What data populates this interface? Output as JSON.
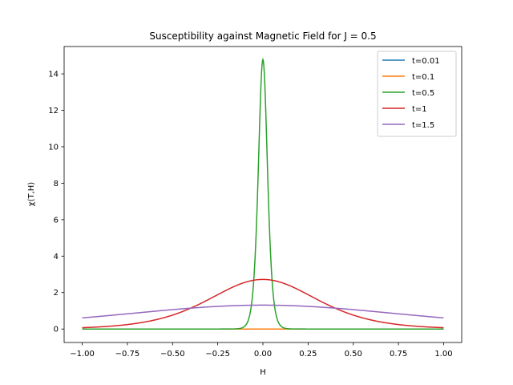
{
  "chart_data": {
    "type": "line",
    "title": "Susceptibility against Magnetic Field for J = 0.5",
    "xlabel": "H",
    "ylabel": "χ(T,H)",
    "xlim": [
      -1.1,
      1.1
    ],
    "ylim": [
      -0.74,
      15.5
    ],
    "x_ticks": [
      -1.0,
      -0.75,
      -0.5,
      -0.25,
      0.0,
      0.25,
      0.5,
      0.75,
      1.0
    ],
    "x_tick_labels": [
      "−1.00",
      "−0.75",
      "−0.50",
      "−0.25",
      "0.00",
      "0.25",
      "0.50",
      "0.75",
      "1.00"
    ],
    "y_ticks": [
      0,
      2,
      4,
      6,
      8,
      10,
      12,
      14
    ],
    "y_tick_labels": [
      "0",
      "2",
      "4",
      "6",
      "8",
      "10",
      "12",
      "14"
    ],
    "grid": false,
    "legend_position": "top-right",
    "x_range": [
      -1.0,
      1.0
    ],
    "series": [
      {
        "name": "t=0.01",
        "color": "#1f77b4",
        "params": {
          "peak": 0,
          "width": 1
        }
      },
      {
        "name": "t=0.1",
        "color": "#ff7f0e",
        "params": {
          "peak": 0,
          "width": 1
        }
      },
      {
        "name": "t=0.5",
        "color": "#2ca02c",
        "params": {
          "peak": 14.78,
          "width": 0.0338
        }
      },
      {
        "name": "t=1",
        "color": "#d62728",
        "params": {
          "peak": 2.72,
          "width": 0.4
        }
      },
      {
        "name": "t=1.5",
        "color": "#9467bd",
        "params": {
          "peak": 1.31,
          "width": 1.074
        }
      }
    ]
  }
}
